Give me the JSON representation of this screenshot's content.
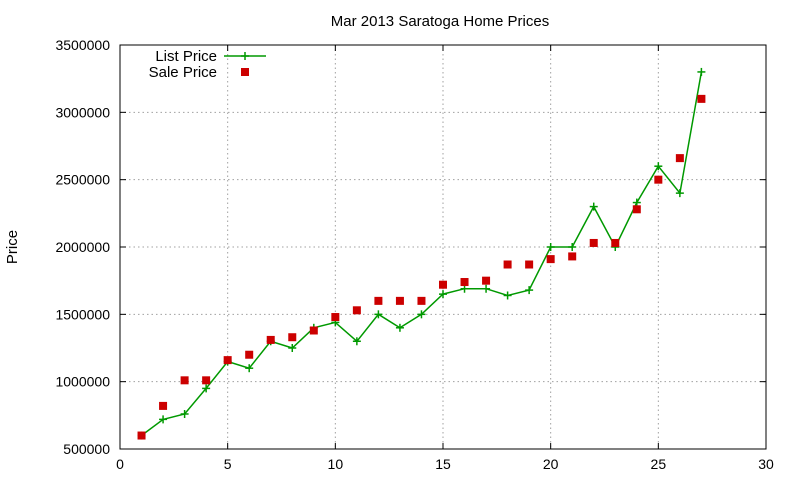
{
  "chart_data": {
    "type": "line",
    "title": "Mar 2013 Saratoga Home Prices",
    "xlabel": "",
    "ylabel": "Price",
    "xlim": [
      0,
      30
    ],
    "ylim": [
      500000,
      3500000
    ],
    "x_ticks": [
      0,
      5,
      10,
      15,
      20,
      25,
      30
    ],
    "y_ticks": [
      500000,
      1000000,
      1500000,
      2000000,
      2500000,
      3000000,
      3500000
    ],
    "grid": true,
    "legend_position": "top-left",
    "series": [
      {
        "name": "List Price",
        "style": "line-with-plus-markers",
        "color": "#009900",
        "x": [
          1,
          2,
          3,
          4,
          5,
          6,
          7,
          8,
          9,
          10,
          11,
          12,
          13,
          14,
          15,
          16,
          17,
          18,
          19,
          20,
          21,
          22,
          23,
          24,
          25,
          26,
          27
        ],
        "values": [
          600000,
          720000,
          760000,
          950000,
          1150000,
          1100000,
          1300000,
          1250000,
          1400000,
          1440000,
          1300000,
          1500000,
          1400000,
          1500000,
          1650000,
          1690000,
          1690000,
          1640000,
          1680000,
          2000000,
          2000000,
          2300000,
          2000000,
          2330000,
          2600000,
          2400000,
          3300000
        ]
      },
      {
        "name": "Sale Price",
        "style": "square-markers",
        "color": "#cc0000",
        "x": [
          1,
          2,
          3,
          4,
          5,
          6,
          7,
          8,
          9,
          10,
          11,
          12,
          13,
          14,
          15,
          16,
          17,
          18,
          19,
          20,
          21,
          22,
          23,
          24,
          25,
          26,
          27
        ],
        "values": [
          600000,
          820000,
          1010000,
          1010000,
          1160000,
          1200000,
          1310000,
          1330000,
          1380000,
          1480000,
          1530000,
          1600000,
          1600000,
          1600000,
          1720000,
          1740000,
          1750000,
          1870000,
          1870000,
          1910000,
          1930000,
          2030000,
          2030000,
          2280000,
          2500000,
          2660000,
          3100000
        ]
      }
    ]
  }
}
